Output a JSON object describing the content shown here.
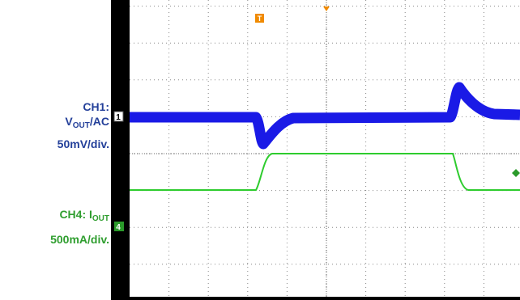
{
  "labels": {
    "ch1": {
      "title": "CH1:",
      "v": "V",
      "sub": "OUT",
      "suffix": "/AC",
      "scale": "50mV/div."
    },
    "ch4": {
      "title": "CH4: I",
      "sub": "OUT",
      "scale": "500mA/div."
    }
  },
  "markers": {
    "ch1": "1",
    "ch4": "4",
    "trigger": "T"
  }
}
